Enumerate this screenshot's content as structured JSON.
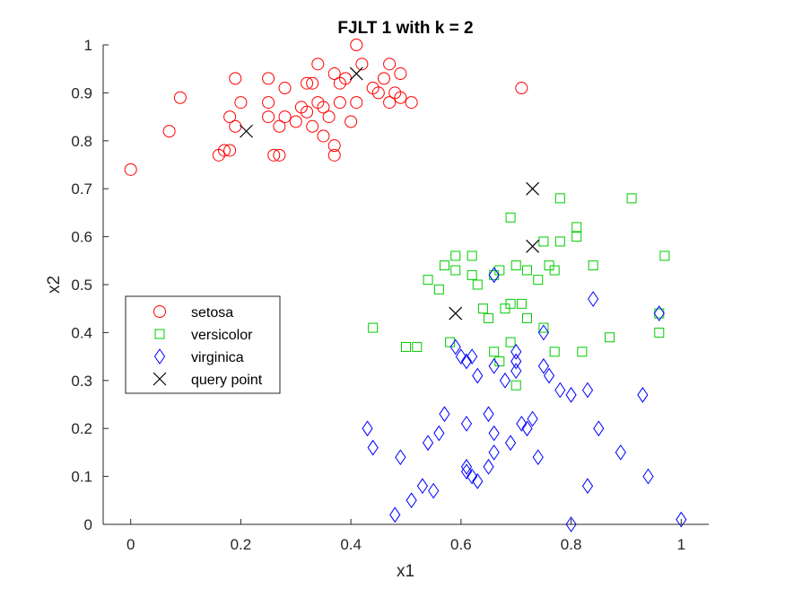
{
  "chart_data": {
    "type": "scatter",
    "title": "FJLT 1 with k = 2",
    "xlabel": "x1",
    "ylabel": "x2",
    "xlim": [
      -0.05,
      1.05
    ],
    "ylim": [
      0,
      1
    ],
    "xticks": [
      "0",
      "0.2",
      "0.4",
      "0.6",
      "0.8",
      "1"
    ],
    "yticks": [
      "0",
      "0.1",
      "0.2",
      "0.3",
      "0.4",
      "0.5",
      "0.6",
      "0.7",
      "0.8",
      "0.9",
      "1"
    ],
    "grid": false,
    "legend_position": "left",
    "series": [
      {
        "name": "setosa",
        "marker": "circle",
        "color": "#ff0000",
        "points": [
          [
            0.0,
            0.74
          ],
          [
            0.07,
            0.82
          ],
          [
            0.09,
            0.89
          ],
          [
            0.16,
            0.77
          ],
          [
            0.17,
            0.78
          ],
          [
            0.18,
            0.85
          ],
          [
            0.18,
            0.78
          ],
          [
            0.19,
            0.83
          ],
          [
            0.19,
            0.93
          ],
          [
            0.2,
            0.88
          ],
          [
            0.25,
            0.93
          ],
          [
            0.25,
            0.88
          ],
          [
            0.25,
            0.85
          ],
          [
            0.26,
            0.77
          ],
          [
            0.27,
            0.77
          ],
          [
            0.27,
            0.83
          ],
          [
            0.28,
            0.91
          ],
          [
            0.28,
            0.85
          ],
          [
            0.3,
            0.84
          ],
          [
            0.31,
            0.87
          ],
          [
            0.32,
            0.92
          ],
          [
            0.32,
            0.86
          ],
          [
            0.33,
            0.83
          ],
          [
            0.33,
            0.92
          ],
          [
            0.34,
            0.96
          ],
          [
            0.34,
            0.88
          ],
          [
            0.35,
            0.87
          ],
          [
            0.35,
            0.81
          ],
          [
            0.36,
            0.85
          ],
          [
            0.37,
            0.94
          ],
          [
            0.37,
            0.77
          ],
          [
            0.37,
            0.79
          ],
          [
            0.38,
            0.88
          ],
          [
            0.38,
            0.92
          ],
          [
            0.39,
            0.93
          ],
          [
            0.4,
            0.84
          ],
          [
            0.41,
            1.0
          ],
          [
            0.41,
            0.88
          ],
          [
            0.42,
            0.96
          ],
          [
            0.44,
            0.91
          ],
          [
            0.45,
            0.9
          ],
          [
            0.46,
            0.93
          ],
          [
            0.47,
            0.96
          ],
          [
            0.47,
            0.88
          ],
          [
            0.48,
            0.9
          ],
          [
            0.49,
            0.94
          ],
          [
            0.49,
            0.89
          ],
          [
            0.51,
            0.88
          ],
          [
            0.71,
            0.91
          ]
        ]
      },
      {
        "name": "versicolor",
        "marker": "square",
        "color": "#00cc00",
        "points": [
          [
            0.44,
            0.41
          ],
          [
            0.5,
            0.37
          ],
          [
            0.52,
            0.37
          ],
          [
            0.54,
            0.51
          ],
          [
            0.56,
            0.49
          ],
          [
            0.57,
            0.54
          ],
          [
            0.58,
            0.38
          ],
          [
            0.59,
            0.53
          ],
          [
            0.59,
            0.56
          ],
          [
            0.62,
            0.56
          ],
          [
            0.62,
            0.52
          ],
          [
            0.63,
            0.5
          ],
          [
            0.64,
            0.45
          ],
          [
            0.65,
            0.43
          ],
          [
            0.66,
            0.36
          ],
          [
            0.66,
            0.52
          ],
          [
            0.67,
            0.34
          ],
          [
            0.67,
            0.53
          ],
          [
            0.68,
            0.45
          ],
          [
            0.69,
            0.46
          ],
          [
            0.69,
            0.38
          ],
          [
            0.69,
            0.64
          ],
          [
            0.7,
            0.54
          ],
          [
            0.7,
            0.29
          ],
          [
            0.71,
            0.46
          ],
          [
            0.72,
            0.43
          ],
          [
            0.72,
            0.53
          ],
          [
            0.74,
            0.51
          ],
          [
            0.75,
            0.59
          ],
          [
            0.75,
            0.41
          ],
          [
            0.76,
            0.54
          ],
          [
            0.77,
            0.53
          ],
          [
            0.77,
            0.36
          ],
          [
            0.78,
            0.68
          ],
          [
            0.78,
            0.59
          ],
          [
            0.81,
            0.6
          ],
          [
            0.81,
            0.62
          ],
          [
            0.82,
            0.36
          ],
          [
            0.84,
            0.54
          ],
          [
            0.87,
            0.39
          ],
          [
            0.91,
            0.68
          ],
          [
            0.96,
            0.44
          ],
          [
            0.96,
            0.4
          ],
          [
            0.97,
            0.56
          ]
        ]
      },
      {
        "name": "virginica",
        "marker": "diamond",
        "color": "#0000ff",
        "points": [
          [
            0.43,
            0.2
          ],
          [
            0.44,
            0.16
          ],
          [
            0.48,
            0.02
          ],
          [
            0.49,
            0.14
          ],
          [
            0.51,
            0.05
          ],
          [
            0.53,
            0.08
          ],
          [
            0.54,
            0.17
          ],
          [
            0.55,
            0.07
          ],
          [
            0.56,
            0.19
          ],
          [
            0.57,
            0.23
          ],
          [
            0.59,
            0.37
          ],
          [
            0.6,
            0.35
          ],
          [
            0.61,
            0.12
          ],
          [
            0.61,
            0.21
          ],
          [
            0.61,
            0.34
          ],
          [
            0.61,
            0.11
          ],
          [
            0.62,
            0.1
          ],
          [
            0.62,
            0.35
          ],
          [
            0.63,
            0.09
          ],
          [
            0.63,
            0.31
          ],
          [
            0.65,
            0.12
          ],
          [
            0.65,
            0.23
          ],
          [
            0.66,
            0.19
          ],
          [
            0.66,
            0.52
          ],
          [
            0.66,
            0.33
          ],
          [
            0.66,
            0.15
          ],
          [
            0.68,
            0.3
          ],
          [
            0.69,
            0.17
          ],
          [
            0.7,
            0.34
          ],
          [
            0.7,
            0.32
          ],
          [
            0.7,
            0.36
          ],
          [
            0.71,
            0.21
          ],
          [
            0.72,
            0.2
          ],
          [
            0.73,
            0.22
          ],
          [
            0.74,
            0.14
          ],
          [
            0.75,
            0.33
          ],
          [
            0.75,
            0.4
          ],
          [
            0.76,
            0.31
          ],
          [
            0.78,
            0.28
          ],
          [
            0.8,
            0.27
          ],
          [
            0.8,
            0.0
          ],
          [
            0.83,
            0.08
          ],
          [
            0.83,
            0.28
          ],
          [
            0.84,
            0.47
          ],
          [
            0.85,
            0.2
          ],
          [
            0.89,
            0.15
          ],
          [
            0.93,
            0.27
          ],
          [
            0.94,
            0.1
          ],
          [
            0.96,
            0.44
          ],
          [
            1.0,
            0.01
          ]
        ]
      },
      {
        "name": "query point",
        "marker": "x",
        "color": "#000000",
        "points": [
          [
            0.21,
            0.82
          ],
          [
            0.41,
            0.94
          ],
          [
            0.59,
            0.44
          ],
          [
            0.73,
            0.58
          ],
          [
            0.73,
            0.7
          ]
        ]
      }
    ]
  }
}
